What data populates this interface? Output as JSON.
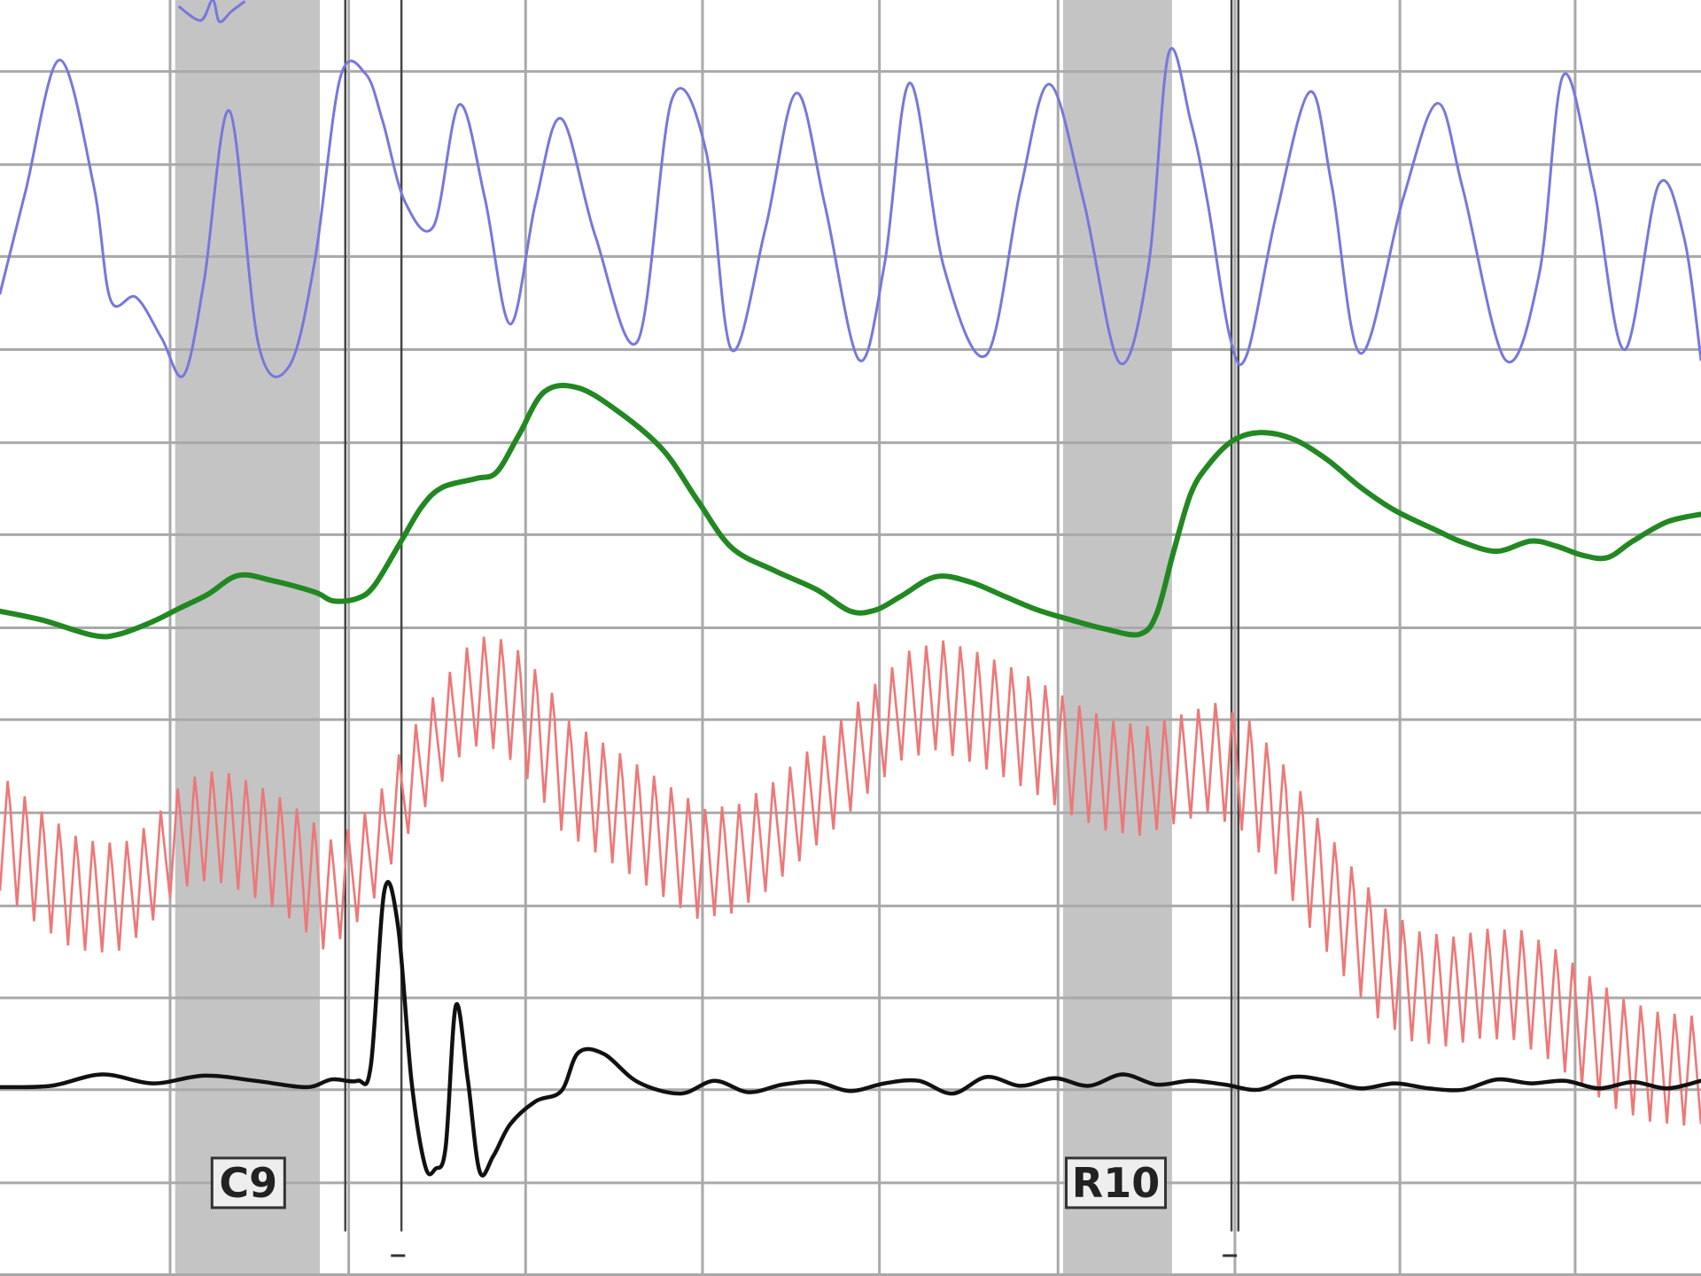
{
  "chart_data": {
    "type": "line",
    "title": "",
    "xlabel": "",
    "ylabel": "",
    "x_range": [
      0,
      100
    ],
    "y_range": [
      0,
      100
    ],
    "grid": true,
    "grid_x": [
      10,
      20.5,
      30.9,
      41.3,
      51.7,
      62.2,
      72.6,
      82.3,
      92.6
    ],
    "grid_y": [
      0.1,
      7.3,
      14.6,
      21.8,
      29,
      36.3,
      43.6,
      50.8,
      58.1,
      65.3,
      72.6,
      79.9,
      87.1,
      94.4
    ],
    "shaded_regions": [
      {
        "label": "C9",
        "x_start": 10.3,
        "x_end": 18.8,
        "label_x": 14.6,
        "tick_x": 23.4
      },
      {
        "label": "R10",
        "x_start": 62.5,
        "x_end": 68.9,
        "label_x": 65.6,
        "tick_x": 72.3
      }
    ],
    "event_lines_x": [
      20.3,
      23.6,
      72.4,
      72.8
    ],
    "series": [
      {
        "role": "respiration-upper",
        "color": "#7777dd",
        "x": [
          0,
          1.5,
          3.5,
          5.5,
          6.5,
          8,
          9.5,
          10.8,
          12,
          13.5,
          15.2,
          17,
          18.5,
          20,
          21.5,
          22.5,
          23.8,
          25.5,
          27,
          28.5,
          30,
          31.5,
          33,
          35,
          37.5,
          39.5,
          41.5,
          43,
          45,
          46.8,
          48.5,
          50.5,
          52,
          53.5,
          55.5,
          58,
          60,
          61.7,
          63.7,
          65.8,
          67.5,
          68.7,
          70,
          71,
          72.3,
          73.3,
          75,
          77,
          78.3,
          80,
          82.5,
          84.5,
          86,
          88.5,
          90.5,
          91.9,
          93.7,
          95.5,
          97.5,
          99,
          100
        ],
        "y": [
          77,
          85,
          95.3,
          85.5,
          76.5,
          76.7,
          73.5,
          70.6,
          78,
          91.3,
          73,
          71.3,
          79.5,
          93.9,
          94.2,
          90.5,
          84.2,
          82.3,
          91.8,
          84.5,
          74.6,
          84.2,
          90.7,
          81.5,
          73.3,
          92.2,
          88.2,
          72.6,
          82.1,
          92.7,
          83.9,
          71.8,
          79.3,
          93.5,
          79,
          72.2,
          85.2,
          93.4,
          84.3,
          71.6,
          79,
          95.8,
          90.5,
          84.1,
          73.6,
          72.2,
          83,
          92.8,
          85.4,
          72.3,
          84.5,
          91.9,
          85.2,
          71.8,
          78.6,
          94.1,
          85.3,
          72.6,
          85.5,
          81.4,
          71.8
        ]
      },
      {
        "role": "electrodermal",
        "color": "#228822",
        "x": [
          0,
          2.5,
          5.5,
          7,
          9,
          10.5,
          12.2,
          14,
          16,
          18.5,
          19.6,
          21,
          22,
          23.5,
          24.8,
          26,
          28,
          29.2,
          30.5,
          32,
          34,
          36.5,
          39,
          41,
          43,
          45.5,
          48,
          50,
          51.5,
          53,
          55,
          57,
          59,
          61,
          63,
          65,
          67,
          68,
          69,
          70,
          71,
          72.4,
          74,
          76,
          78,
          80,
          82,
          84.5,
          86,
          88,
          90,
          91.5,
          93,
          94.5,
          96,
          98,
          100
        ],
        "y": [
          52.1,
          51.4,
          50.2,
          50.3,
          51.3,
          52.3,
          53.4,
          54.9,
          54.5,
          53.6,
          52.9,
          53.1,
          54.1,
          57.4,
          60.3,
          61.8,
          62.5,
          63,
          65.9,
          69.3,
          69.6,
          67.6,
          64.7,
          60.8,
          57.1,
          55.3,
          53.8,
          52.1,
          52.2,
          53.3,
          54.8,
          54.4,
          53.3,
          52.2,
          51.4,
          50.7,
          50.3,
          51.9,
          56.8,
          61.3,
          63.5,
          65.4,
          66.1,
          65.6,
          64,
          61.8,
          60,
          58.4,
          57.5,
          56.8,
          57.6,
          57.2,
          56.5,
          56.3,
          57.6,
          59.1,
          59.7
        ]
      },
      {
        "role": "cardio-baseline",
        "color": "#dd3333",
        "x": [
          0,
          2,
          4,
          5.5,
          7,
          8.5,
          10,
          11.5,
          13,
          14.5,
          16,
          17.5,
          19,
          20.5,
          22,
          23.5,
          25.5,
          27.5,
          29.5,
          31.5,
          33,
          35,
          37,
          39,
          41,
          43,
          45,
          47,
          49,
          51,
          53,
          55,
          57,
          59,
          61,
          63,
          65,
          67,
          69,
          71,
          73,
          75,
          77,
          79,
          81,
          83,
          85,
          87,
          89,
          91,
          93,
          95,
          97,
          99,
          100
        ],
        "y": [
          34.5,
          32.1,
          30.2,
          29.6,
          29.8,
          31.3,
          33.9,
          35.3,
          35.1,
          34.3,
          33.2,
          31.9,
          29.9,
          31.1,
          33.9,
          37.9,
          42.1,
          45.9,
          45.5,
          42.5,
          39.2,
          37.5,
          35.8,
          34,
          32.3,
          32.7,
          34.4,
          36.8,
          39.3,
          42.1,
          44.7,
          45.5,
          44.6,
          43.4,
          42,
          40.4,
          39.2,
          38.8,
          39.7,
          40.6,
          39.2,
          35.8,
          31.6,
          27.8,
          24.5,
          22.7,
          22.3,
          22.9,
          22.8,
          21.3,
          19.2,
          17.4,
          16.4,
          16.1,
          16.2
        ]
      },
      {
        "role": "activity",
        "color": "#111111",
        "x": [
          0,
          3,
          6,
          9,
          12,
          15,
          18,
          19.5,
          21,
          21.8,
          22.6,
          23.4,
          24.2,
          25,
          25.6,
          26.2,
          26.8,
          27.5,
          28.2,
          29,
          30,
          31.5,
          33,
          34,
          35.5,
          37.5,
          40,
          42,
          44,
          46,
          48,
          50,
          52,
          54,
          56,
          58,
          60,
          62,
          64,
          66,
          68,
          70,
          72,
          74,
          76,
          78,
          80,
          82,
          84,
          86,
          88,
          90,
          92,
          94,
          96,
          98,
          100
        ],
        "y": [
          14.8,
          14.9,
          15.8,
          15.1,
          15.7,
          15.3,
          14.8,
          15.4,
          15.3,
          16.5,
          30.2,
          27.4,
          15.2,
          8.6,
          8.4,
          10.1,
          21.2,
          15.4,
          8.2,
          9.4,
          11.9,
          13.7,
          14.5,
          17.5,
          17.4,
          15.2,
          14.3,
          15.3,
          14.4,
          15,
          15.2,
          14.5,
          15.1,
          15.3,
          14.3,
          15.6,
          14.9,
          15.5,
          14.9,
          15.8,
          15,
          15.3,
          15,
          14.6,
          15.6,
          15.3,
          14.7,
          15.1,
          14.7,
          14.6,
          15.4,
          15.1,
          15.3,
          14.7,
          15.2,
          14.7,
          15.3
        ]
      }
    ],
    "cardio_pulse": {
      "color": "#ee7777",
      "period": 1.0,
      "half_amplitude": 4.3
    },
    "top_fragment": {
      "color": "#7777dd",
      "x": [
        10.5,
        11.8,
        12.5,
        12.9,
        13.6,
        14.4
      ],
      "y": [
        99.5,
        98.4,
        100,
        98.3,
        99.1,
        99.9
      ]
    }
  }
}
